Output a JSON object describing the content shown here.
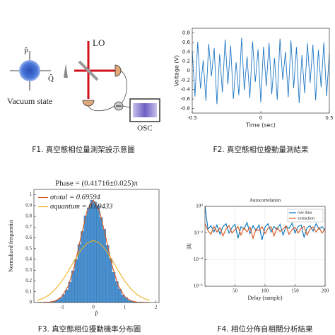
{
  "diagram": {
    "labels": {
      "p": "P̂",
      "q": "Q̂",
      "lo": "LO",
      "state": "Vacuum state",
      "osc": "OSC"
    },
    "caption": "F1. 真空態相位量測架設示意圖"
  },
  "chart_data": [
    {
      "type": "line",
      "caption": "F2. 真空態相位擾動量測結果",
      "xlabel": "Time (sec)",
      "ylabel": "Voltage (V)",
      "xlim": [
        -0.5,
        0.5
      ],
      "xticks": [
        -0.5,
        0,
        0.5
      ],
      "ylim": [
        -0.9,
        0.9
      ],
      "yticks": [
        -0.8,
        -0.6,
        -0.4,
        -0.2,
        0,
        0.2,
        0.4,
        0.6,
        0.8
      ],
      "grid": false,
      "series": [
        {
          "name": null,
          "color": "#1f77c4",
          "x": [
            -0.5,
            -0.48,
            -0.46,
            -0.44,
            -0.42,
            -0.4,
            -0.38,
            -0.36,
            -0.34,
            -0.32,
            -0.3,
            -0.28,
            -0.26,
            -0.24,
            -0.22,
            -0.2,
            -0.18,
            -0.16,
            -0.14,
            -0.12,
            -0.1,
            -0.08,
            -0.06,
            -0.04,
            -0.02,
            0,
            0.02,
            0.04,
            0.06,
            0.08,
            0.1,
            0.12,
            0.14,
            0.16,
            0.18,
            0.2,
            0.22,
            0.24,
            0.26,
            0.28,
            0.3,
            0.32,
            0.34,
            0.36,
            0.38,
            0.4,
            0.42,
            0.44,
            0.46,
            0.48,
            0.5
          ],
          "values": [
            0.42,
            -0.55,
            0.61,
            -0.38,
            0.22,
            -0.64,
            0.57,
            -0.12,
            0.48,
            -0.71,
            0.35,
            -0.46,
            0.66,
            -0.29,
            0.53,
            -0.6,
            0.18,
            -0.52,
            0.7,
            -0.41,
            0.3,
            -0.58,
            0.62,
            -0.24,
            0.45,
            -0.67,
            0.51,
            -0.33,
            0.59,
            -0.5,
            0.27,
            -0.62,
            0.68,
            -0.19,
            0.4,
            -0.56,
            0.64,
            -0.37,
            0.5,
            -0.69,
            0.33,
            -0.48,
            0.58,
            -0.26,
            0.55,
            -0.63,
            0.44,
            -0.35,
            0.6,
            -0.54,
            0.38
          ]
        }
      ]
    },
    {
      "type": "histogram",
      "caption": "F3. 真空態相位擾動機率分布圖",
      "title": "Phase = (0.41716±0.025)π",
      "xlabel": "P̂",
      "ylabel": "Normalized frequentist",
      "xlim": [
        -1.9,
        2.1
      ],
      "xticks": [
        -1,
        0,
        1,
        2
      ],
      "ylim": [
        0,
        1.05
      ],
      "yticks": [
        0,
        0.1,
        0.2,
        0.3,
        0.4,
        0.5,
        0.6,
        0.7,
        0.8,
        0.9,
        1
      ],
      "grid": false,
      "legend": "upper left",
      "color": "#4a90cf",
      "bins": [
        -1.6,
        -1.5,
        -1.4,
        -1.3,
        -1.2,
        -1.1,
        -1,
        -0.9,
        -0.8,
        -0.7,
        -0.6,
        -0.5,
        -0.4,
        -0.3,
        -0.2,
        -0.1,
        0,
        0.1,
        0.2,
        0.3,
        0.4,
        0.5,
        0.6,
        0.7,
        0.8,
        0.9,
        1,
        1.1,
        1.2,
        1.3,
        1.4,
        1.5,
        1.6
      ],
      "values": [
        0.002,
        0.003,
        0.006,
        0.01,
        0.024,
        0.04,
        0.075,
        0.118,
        0.19,
        0.295,
        0.398,
        0.54,
        0.66,
        0.805,
        0.88,
        0.95,
        0.935,
        0.9,
        0.79,
        0.68,
        0.53,
        0.41,
        0.28,
        0.195,
        0.125,
        0.07,
        0.045,
        0.02,
        0.012,
        0.005,
        0.003,
        0.001
      ],
      "series": [
        {
          "name": "σtotal = 0.69594",
          "color": "#d95319",
          "x": [
            -1.8,
            -1.6,
            -1.4,
            -1.2,
            -1,
            -0.8,
            -0.6,
            -0.4,
            -0.2,
            0,
            0.2,
            0.4,
            0.6,
            0.8,
            1,
            1.2,
            1.4,
            1.6,
            1.8
          ],
          "values": [
            0,
            0.001,
            0.004,
            0.016,
            0.056,
            0.155,
            0.342,
            0.604,
            0.848,
            0.95,
            0.848,
            0.604,
            0.342,
            0.155,
            0.056,
            0.016,
            0.004,
            0.001,
            0
          ]
        },
        {
          "name": "σquantum = 0.69433",
          "color": "#edb120",
          "x": [
            -1.8,
            -1.6,
            -1.4,
            -1.2,
            -1,
            -0.8,
            -0.6,
            -0.4,
            -0.2,
            0,
            0.2,
            0.4,
            0.6,
            0.8,
            1,
            1.2,
            1.4,
            1.6,
            1.8
          ],
          "values": [
            0.019,
            0.039,
            0.073,
            0.127,
            0.201,
            0.293,
            0.394,
            0.486,
            0.551,
            0.575,
            0.551,
            0.486,
            0.394,
            0.293,
            0.201,
            0.127,
            0.073,
            0.039,
            0.019
          ]
        }
      ]
    },
    {
      "type": "line",
      "caption": "F4. 相位分佈自相關分析結果",
      "title": "Autocorrelation",
      "xlabel": "Delay (sample)",
      "ylabel": "|R|",
      "xlim": [
        0,
        200
      ],
      "xticks": [
        50,
        100,
        150,
        200
      ],
      "ylim": [
        1e-06,
        1
      ],
      "log": true,
      "yticks": [
        {
          "value": 1,
          "label": "10⁰"
        },
        {
          "value": 0.01,
          "label": "10⁻²"
        },
        {
          "value": 0.0001,
          "label": "10⁻⁴"
        },
        {
          "value": 1e-06,
          "label": "10⁻⁶"
        }
      ],
      "grid": true,
      "legend": "upper right",
      "series": [
        {
          "name": "raw data",
          "color": "#0072bd",
          "x": [
            0,
            5,
            10,
            15,
            20,
            25,
            30,
            35,
            40,
            45,
            50,
            55,
            60,
            65,
            70,
            75,
            80,
            85,
            90,
            95,
            100,
            105,
            110,
            115,
            120,
            125,
            130,
            135,
            140,
            145,
            150,
            155,
            160,
            165,
            170,
            175,
            180,
            185,
            190,
            195,
            200
          ],
          "values": [
            1,
            0.02,
            0.035,
            0.012,
            0.04,
            0.008,
            0.03,
            0.05,
            0.01,
            0.025,
            0.045,
            0.004,
            0.03,
            0.02,
            0.06,
            0.009,
            0.035,
            0.015,
            0.04,
            0.003,
            0.028,
            0.05,
            0.012,
            0.03,
            0.018,
            0.045,
            0.007,
            0.032,
            0.022,
            0.055,
            0.01,
            0.03,
            0.04,
            0.005,
            0.025,
            0.035,
            0.014,
            0.05,
            0.02,
            0.03,
            0.015
          ]
        },
        {
          "name": "extraction",
          "color": "#d95319",
          "x": [
            0,
            5,
            10,
            15,
            20,
            25,
            30,
            35,
            40,
            45,
            50,
            55,
            60,
            65,
            70,
            75,
            80,
            85,
            90,
            95,
            100,
            105,
            110,
            115,
            120,
            125,
            130,
            135,
            140,
            145,
            150,
            155,
            160,
            165,
            170,
            175,
            180,
            185,
            190,
            195,
            200
          ],
          "values": [
            0.05,
            0.015,
            0.008,
            0.03,
            0.012,
            0.025,
            0.006,
            0.02,
            0.035,
            0.01,
            0.018,
            0.03,
            0.007,
            0.025,
            0.012,
            0.028,
            0.004,
            0.02,
            0.015,
            0.03,
            0.009,
            0.022,
            0.03,
            0.006,
            0.025,
            0.013,
            0.02,
            0.035,
            0.008,
            0.018,
            0.027,
            0.01,
            0.022,
            0.03,
            0.007,
            0.02,
            0.028,
            0.012,
            0.025,
            0.01,
            0.02
          ]
        }
      ]
    }
  ]
}
